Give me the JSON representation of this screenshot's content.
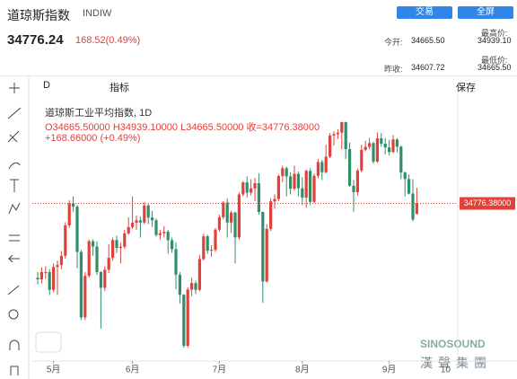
{
  "header": {
    "name": "道琼斯指数",
    "code": "INDIW",
    "trade_button": "交易",
    "fullscreen_button": "全屏",
    "price": "34776.24",
    "change": "168.52(0.49%)",
    "stats": [
      {
        "label": "今开:",
        "value": "34665.50"
      },
      {
        "label": "最高价:",
        "value": "34939.10"
      },
      {
        "label": "昨收:",
        "value": "34607.72"
      },
      {
        "label": "最低价:",
        "value": "34665.50"
      }
    ]
  },
  "toolbar": {
    "interval": "D",
    "indicators": "指标",
    "save": "保存"
  },
  "legend": {
    "title": "道琼斯工业平均指数, 1D",
    "ohlc": "O34665.50000 H34939.10000 L34665.50000 收=34776.38000",
    "change": "+168.66000 (+0.49%)"
  },
  "watermark": {
    "brand": "SINOSOUND",
    "name": "漢聲集團"
  },
  "chart_data": {
    "type": "candlestick",
    "up_color": "#e0413a",
    "down_color": "#2f8f6a",
    "ylim": [
      33150,
      35850
    ],
    "close_label": "34776.38000",
    "extra_xtick": "10",
    "categories": [
      null,
      null,
      null,
      null,
      "5月",
      null,
      null,
      null,
      null,
      null,
      null,
      null,
      null,
      null,
      null,
      null,
      null,
      null,
      null,
      null,
      null,
      null,
      null,
      null,
      "6月",
      null,
      null,
      null,
      null,
      null,
      null,
      null,
      null,
      null,
      null,
      null,
      null,
      null,
      null,
      null,
      null,
      null,
      null,
      null,
      null,
      null,
      "7月",
      null,
      null,
      null,
      null,
      null,
      null,
      null,
      null,
      null,
      null,
      null,
      null,
      null,
      null,
      null,
      null,
      null,
      null,
      null,
      null,
      "8月",
      null,
      null,
      null,
      null,
      null,
      null,
      null,
      null,
      null,
      null,
      null,
      null,
      null,
      null,
      null,
      null,
      null,
      null,
      null,
      null,
      null,
      "9月",
      null,
      null,
      null,
      null,
      null,
      null,
      null
    ],
    "open": [
      34000,
      33984,
      34060,
      34060,
      33875,
      34113,
      34133,
      34230,
      34548,
      34778,
      34743,
      34270,
      33587,
      34021,
      34382,
      34327,
      34060,
      33896,
      34084,
      34208,
      34394,
      34312,
      34323,
      34464,
      34529,
      34575,
      34600,
      34577,
      34756,
      34630,
      34600,
      34447,
      34466,
      34480,
      34393,
      34299,
      34033,
      33823,
      33290,
      33877,
      33945,
      33874,
      34196,
      34433,
      34283,
      34292,
      34503,
      34633,
      34786,
      34577,
      34681,
      34422,
      34870,
      34996,
      34889,
      34933,
      34987,
      34687,
      33962,
      34511,
      34798,
      34823,
      35062,
      35144,
      35058,
      34930,
      35085,
      34935,
      34838,
      35117,
      34793,
      35065,
      35209,
      35102,
      35265,
      35485,
      35500,
      35515,
      35625,
      35343,
      34961,
      34894,
      35120,
      35336,
      35367,
      35406,
      35214,
      35456,
      35400,
      35361,
      35313,
      35444,
      35369,
      35100,
      35031,
      34879,
      34665.5
    ],
    "high": [
      34060,
      34110,
      34120,
      34090,
      34150,
      34180,
      34280,
      34580,
      34810,
      34850,
      34760,
      34290,
      34060,
      34400,
      34400,
      34380,
      34070,
      34120,
      34350,
      34420,
      34440,
      34370,
      34500,
      34630,
      34850,
      34650,
      34640,
      34790,
      34770,
      34700,
      34620,
      34500,
      34540,
      34500,
      34420,
      34370,
      34060,
      33830,
      33900,
      34000,
      33970,
      34240,
      34460,
      34450,
      34340,
      34520,
      34660,
      34800,
      34830,
      34700,
      34690,
      34890,
      35010,
      35060,
      35030,
      35040,
      35090,
      34690,
      34560,
      34830,
      34870,
      35080,
      35170,
      35160,
      35100,
      35170,
      35110,
      35050,
      35130,
      35140,
      35090,
      35240,
      35230,
      35390,
      35510,
      35530,
      35550,
      35630,
      35630,
      35410,
      35020,
      35140,
      35390,
      35430,
      35460,
      35420,
      35520,
      35510,
      35460,
      35440,
      35490,
      35460,
      35380,
      35110,
      35080,
      35030,
      34939.1
    ],
    "low": [
      33930,
      33940,
      33990,
      33820,
      33850,
      33820,
      34090,
      34200,
      34520,
      34690,
      34100,
      33560,
      33560,
      34000,
      34230,
      34030,
      33470,
      33860,
      34050,
      34180,
      34260,
      34150,
      34300,
      34450,
      34510,
      34500,
      34420,
      34560,
      34560,
      34530,
      34430,
      34400,
      34420,
      34250,
      34260,
      33880,
      33730,
      33270,
      33270,
      33810,
      33830,
      33860,
      34180,
      34250,
      34220,
      34270,
      34480,
      34610,
      34420,
      34470,
      34150,
      34400,
      34850,
      34840,
      34860,
      34800,
      34660,
      33740,
      33950,
      34490,
      34720,
      34800,
      35000,
      34850,
      34870,
      34910,
      34850,
      34760,
      34730,
      34760,
      34780,
      35040,
      35020,
      35090,
      35250,
      35380,
      35450,
      35340,
      35240,
      34950,
      34690,
      34860,
      35100,
      35320,
      35340,
      35190,
      35200,
      35370,
      35290,
      35280,
      35300,
      35310,
      35030,
      34850,
      34870,
      34590,
      34665.5
    ],
    "close": [
      33984,
      34060,
      34060,
      33875,
      34113,
      34133,
      34230,
      34548,
      34778,
      34743,
      34270,
      33587,
      34021,
      34382,
      34327,
      34060,
      33896,
      34084,
      34208,
      34394,
      34312,
      34323,
      34464,
      34529,
      34575,
      34600,
      34577,
      34756,
      34630,
      34600,
      34447,
      34466,
      34480,
      34393,
      34299,
      34033,
      33823,
      33290,
      33877,
      33945,
      33874,
      34196,
      34433,
      34283,
      34292,
      34503,
      34633,
      34786,
      34577,
      34681,
      34422,
      34870,
      34996,
      34889,
      34933,
      34987,
      34687,
      33962,
      34511,
      34798,
      34823,
      35062,
      35144,
      35058,
      34930,
      35085,
      34935,
      34838,
      35117,
      34793,
      35065,
      35209,
      35102,
      35265,
      35485,
      35500,
      35515,
      35625,
      35343,
      34961,
      34894,
      35120,
      35336,
      35367,
      35406,
      35214,
      35456,
      35400,
      35361,
      35313,
      35444,
      35369,
      35100,
      35031,
      34879,
      34608,
      34776.38
    ]
  }
}
